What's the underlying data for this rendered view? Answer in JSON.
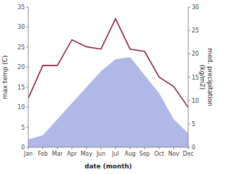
{
  "chart_data": {
    "type": "area",
    "xlabel": "date (month)",
    "ylabel": "max temp (C)",
    "y2label": "med. precipitation\n(kg/m2)",
    "categories": [
      "Jan",
      "Feb",
      "Mar",
      "Apr",
      "May",
      "Jun",
      "Jul",
      "Aug",
      "Sep",
      "Oct",
      "Nov",
      "Dec"
    ],
    "series": [
      {
        "type": "area",
        "color": "#b0b8e8",
        "values": [
          2.0,
          3.0,
          7.0,
          11.0,
          15.0,
          19.0,
          22.0,
          22.5,
          18.0,
          13.5,
          7.0,
          3.5
        ]
      },
      {
        "type": "line",
        "color": "#8b2040",
        "axis": "y2",
        "values": [
          10.5,
          17.5,
          17.5,
          23.0,
          21.5,
          21.0,
          27.5,
          21.0,
          20.5,
          15.0,
          13.0,
          8.5
        ]
      }
    ],
    "ylim": [
      0,
      35
    ],
    "yticks": [
      0,
      5,
      10,
      15,
      20,
      25,
      30,
      35
    ],
    "y2lim": [
      0,
      30
    ],
    "y2ticks": [
      0,
      5,
      10,
      15,
      20,
      25,
      30
    ],
    "grid": false
  }
}
